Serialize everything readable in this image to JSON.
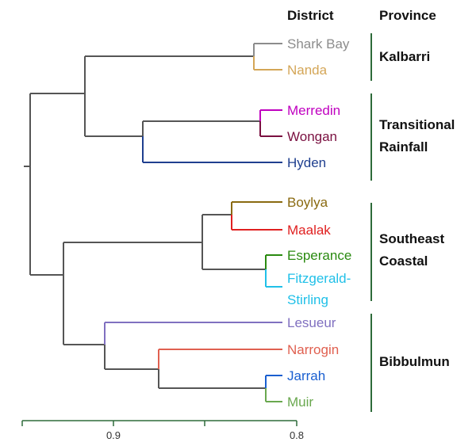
{
  "headers": {
    "district": "District",
    "province": "Province"
  },
  "leaves": [
    {
      "label": "Shark Bay",
      "color": "#8c8c8c"
    },
    {
      "label": "Nanda",
      "color": "#d4a657"
    },
    {
      "label": "Merredin",
      "color": "#c000c0"
    },
    {
      "label": "Wongan",
      "color": "#7a1040"
    },
    {
      "label": "Hyden",
      "color": "#1f3f8f"
    },
    {
      "label": "Boylya",
      "color": "#8a6a10"
    },
    {
      "label": "Maalak",
      "color": "#e02020"
    },
    {
      "label": "Esperance",
      "color": "#2a8a10"
    },
    {
      "label": "Fitzgerald-",
      "color": "#20c0e8"
    },
    {
      "label": "Stirling",
      "color": "#20c0e8"
    },
    {
      "label": "Lesueur",
      "color": "#8070c0"
    },
    {
      "label": "Narrogin",
      "color": "#e06050"
    },
    {
      "label": "Jarrah",
      "color": "#1a5fd0"
    },
    {
      "label": "Muir",
      "color": "#6aa84f"
    }
  ],
  "provinces": [
    {
      "lines": [
        "Kalbarri"
      ]
    },
    {
      "lines": [
        "Transitional",
        "Rainfall"
      ]
    },
    {
      "lines": [
        "Southeast",
        "Coastal"
      ]
    },
    {
      "lines": [
        "Bibbulmun"
      ]
    }
  ],
  "axis": {
    "ticks": [
      "0.9",
      "0.8"
    ]
  },
  "colors": {
    "tree": "#555555",
    "province_bar": "#2e6b3a",
    "axis": "#2e6b3a"
  }
}
